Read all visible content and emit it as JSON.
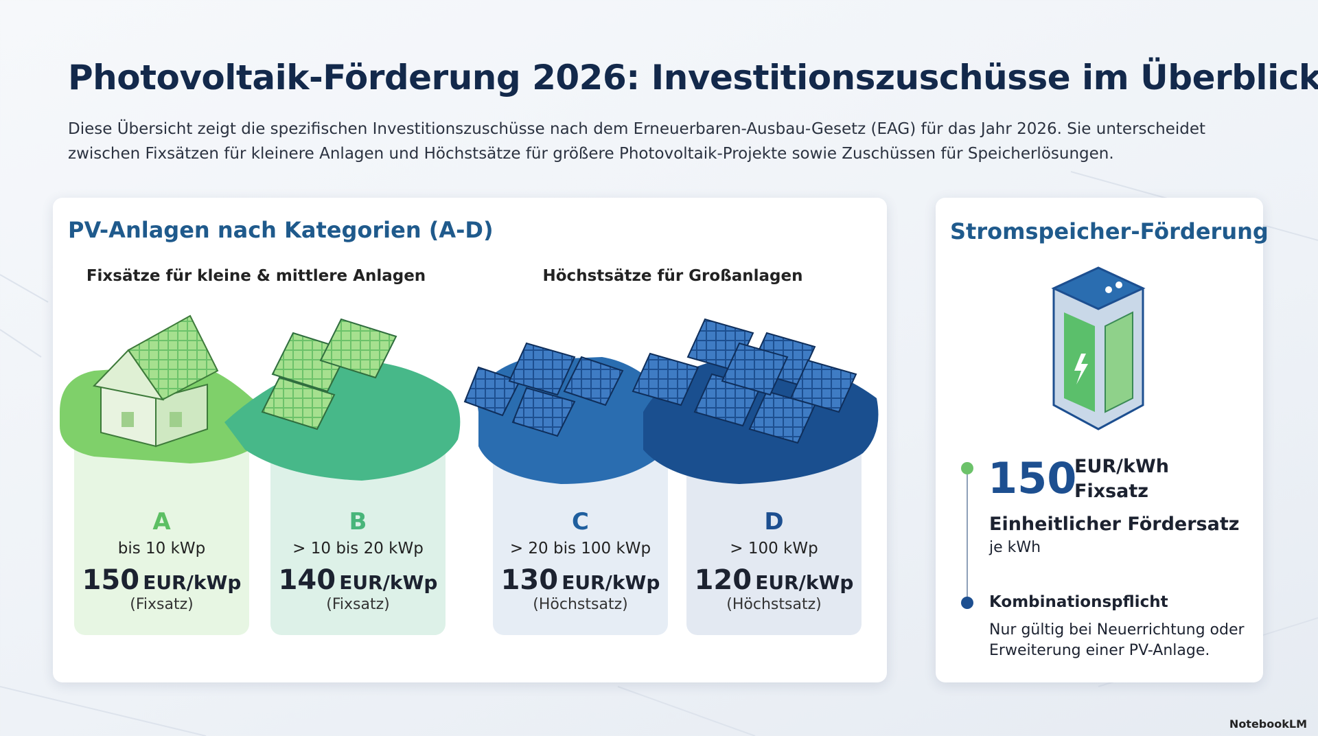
{
  "header": {
    "title": "Photovoltaik-Förderung 2026: Investitionszuschüsse im Überblick",
    "description": "Diese Übersicht zeigt die spezifischen Investitionszuschüsse nach dem Erneuerbaren-Ausbau-Gesetz (EAG) für das Jahr 2026. Sie unterscheidet zwischen Fixsätzen für kleinere Anlagen und Höchstsätze für größere Photovoltaik-Projekte sowie Zuschüssen für Speicherlösungen."
  },
  "pv_section": {
    "title": "PV-Anlagen nach Kategorien (A-D)",
    "groups": [
      "Fixsätze für kleine & mittlere Anlagen",
      "Höchstsätze für Großanlagen"
    ],
    "categories": [
      {
        "letter": "A",
        "range": "bis 10 kWp",
        "amount": "150",
        "unit": "EUR/kWp",
        "note": "(Fixsatz)"
      },
      {
        "letter": "B",
        "range": "> 10 bis 20 kWp",
        "amount": "140",
        "unit": "EUR/kWp",
        "note": "(Fixsatz)"
      },
      {
        "letter": "C",
        "range": "> 20 bis 100 kWp",
        "amount": "130",
        "unit": "EUR/kWp",
        "note": "(Höchstsatz)"
      },
      {
        "letter": "D",
        "range": "> 100 kWp",
        "amount": "120",
        "unit": "EUR/kWp",
        "note": "(Höchstsatz)"
      }
    ]
  },
  "storage": {
    "title": "Stromspeicher-Förderung",
    "amount": "150",
    "unit": "EUR/kWh",
    "rate_type": "Fixsatz",
    "label": "Einheitlicher Fördersatz",
    "per": "je kWh",
    "condition_title": "Kombinationspflicht",
    "condition_text": "Nur gültig bei Neuerrichtung oder Erweiterung einer PV-Anlage."
  },
  "footer": {
    "brand": "NotebookLM"
  }
}
